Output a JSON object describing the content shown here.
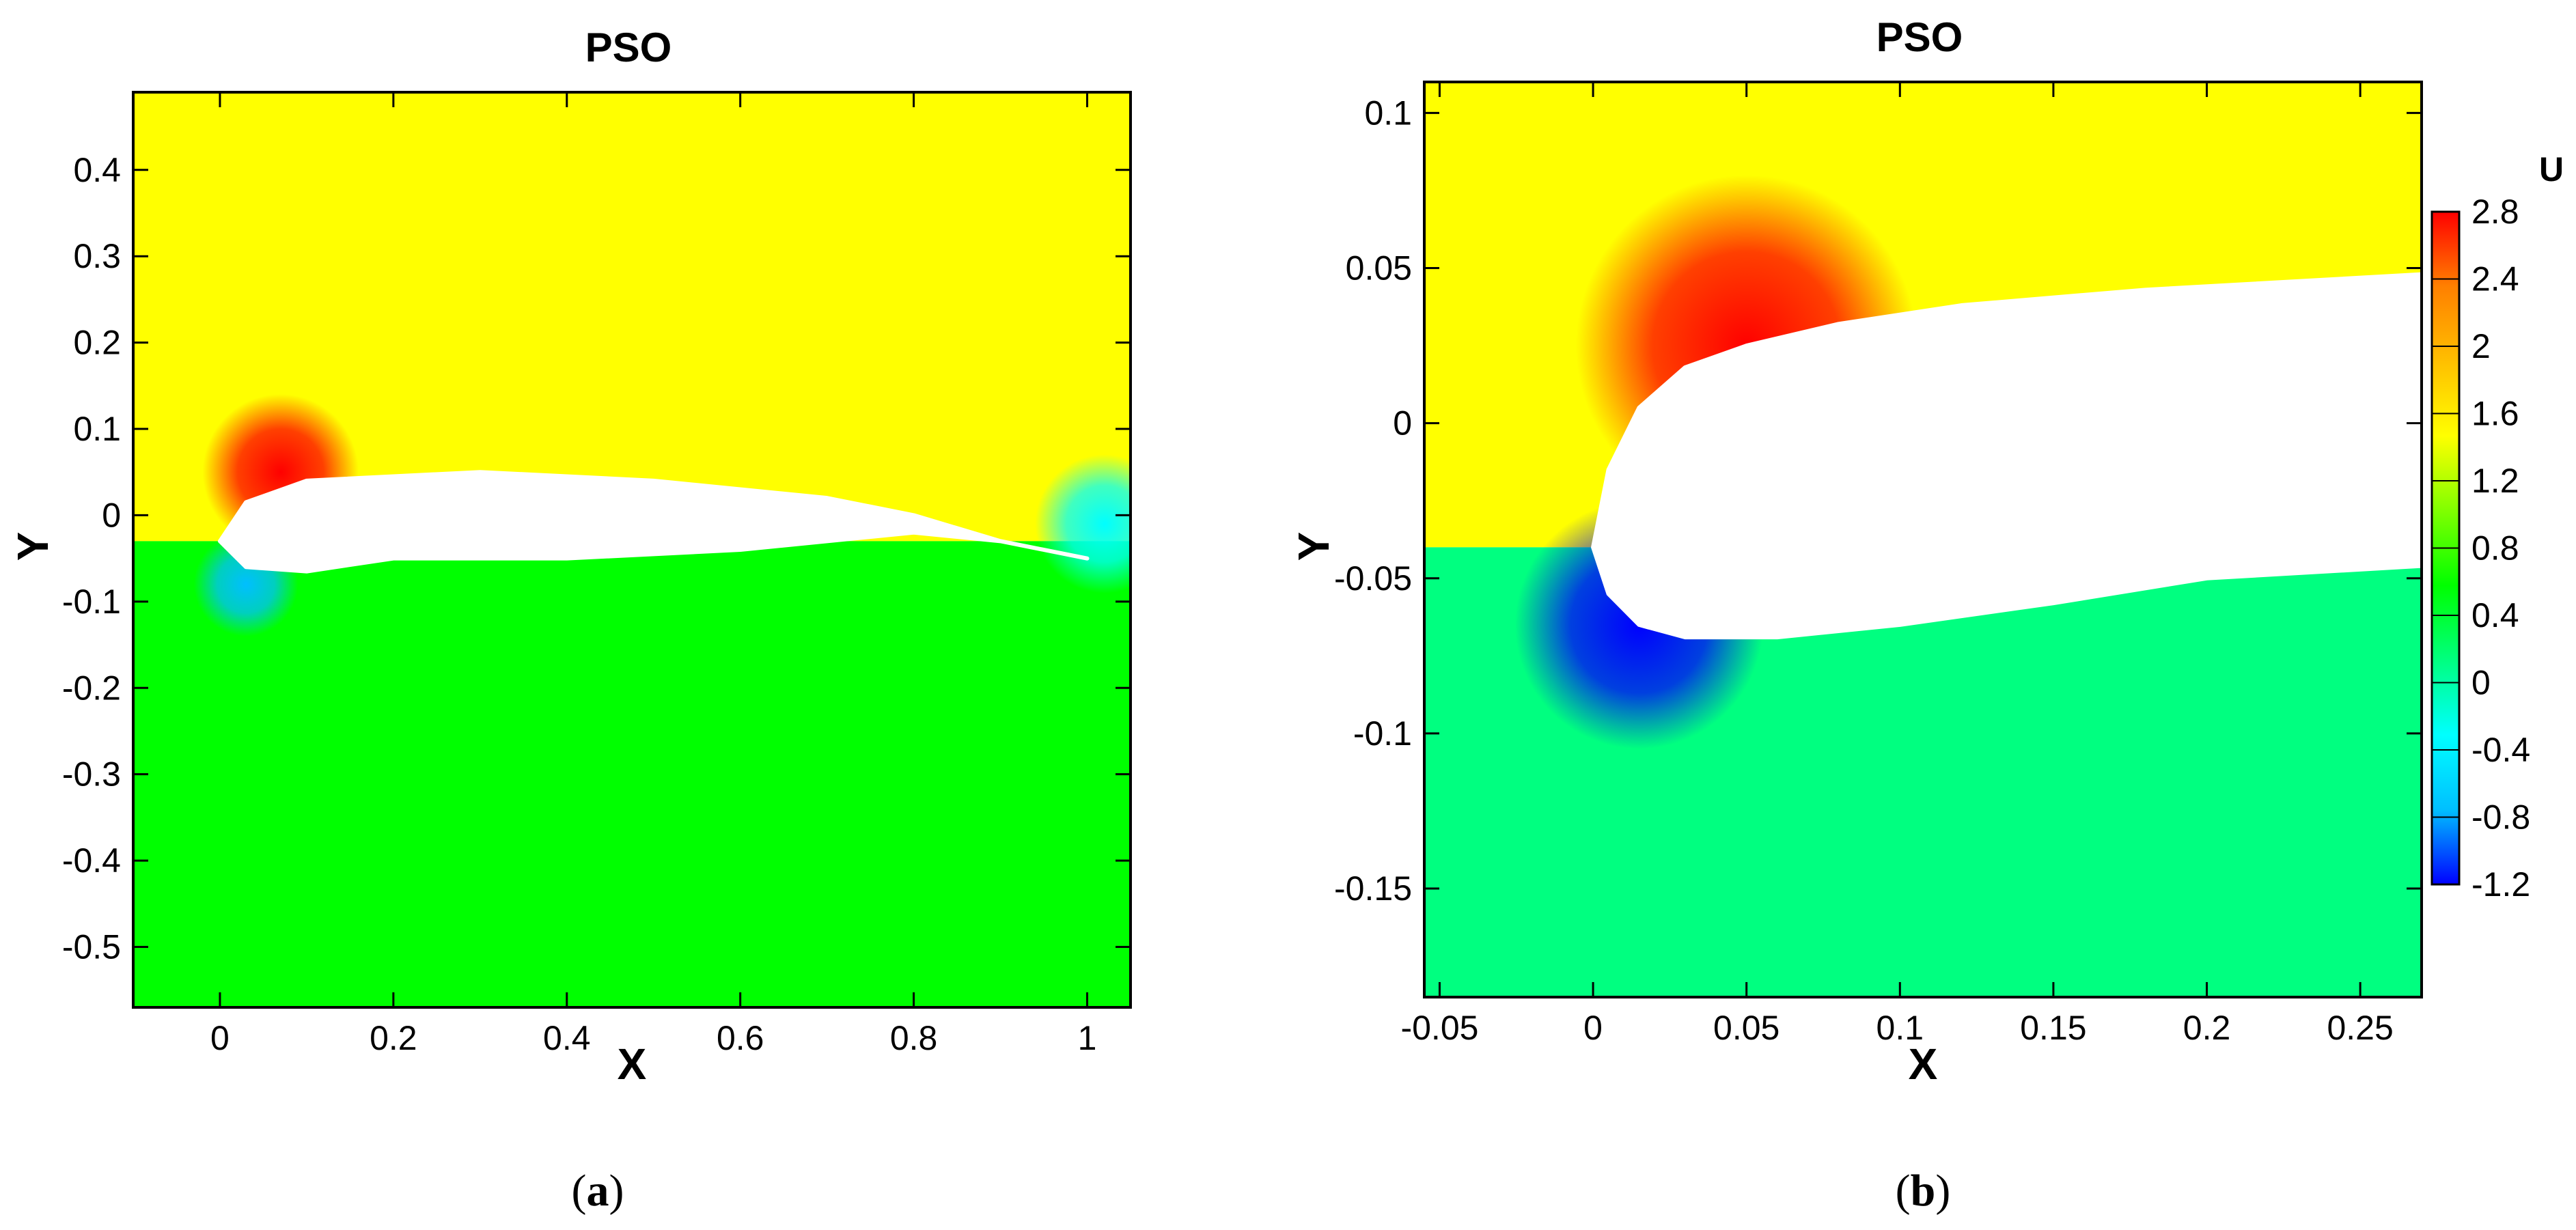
{
  "chart_data": [
    {
      "type": "heatmap",
      "panel_label": "a",
      "title": "PSO",
      "xlabel": "X",
      "ylabel": "Y",
      "xlim": [
        -0.1,
        1.05
      ],
      "ylim": [
        -0.57,
        0.49
      ],
      "xticks": [
        0,
        0.2,
        0.4,
        0.6,
        0.8,
        1
      ],
      "xtick_labels": [
        "0",
        "0.2",
        "0.4",
        "0.6",
        "0.8",
        "1"
      ],
      "yticks": [
        0.4,
        0.3,
        0.2,
        0.1,
        0,
        -0.1,
        -0.2,
        -0.3,
        -0.4,
        -0.5
      ],
      "ytick_labels": [
        "0.4",
        "0.3",
        "0.2",
        "0.1",
        "0",
        "-0.1",
        "-0.2",
        "-0.3",
        "-0.4",
        "-0.5"
      ],
      "field": {
        "variable": "U",
        "upper_region_value": 1.3,
        "lower_region_value": 0.5,
        "hotspots": [
          {
            "x": 0.07,
            "y": 0.05,
            "value": 2.9,
            "radius": 0.09
          },
          {
            "x": 0.03,
            "y": -0.08,
            "value": -0.6,
            "radius": 0.06
          },
          {
            "x": 1.02,
            "y": -0.01,
            "value": -0.2,
            "radius": 0.08
          }
        ],
        "airfoil_upper": [
          [
            0.0,
            -0.03
          ],
          [
            0.03,
            0.015
          ],
          [
            0.1,
            0.04
          ],
          [
            0.3,
            0.05
          ],
          [
            0.5,
            0.04
          ],
          [
            0.7,
            0.02
          ],
          [
            0.8,
            0.0
          ],
          [
            0.9,
            -0.03
          ],
          [
            1.0,
            -0.05
          ]
        ],
        "airfoil_lower": [
          [
            0.0,
            -0.03
          ],
          [
            0.03,
            -0.06
          ],
          [
            0.1,
            -0.065
          ],
          [
            0.2,
            -0.05
          ],
          [
            0.4,
            -0.05
          ],
          [
            0.6,
            -0.04
          ],
          [
            0.8,
            -0.02
          ],
          [
            0.9,
            -0.03
          ],
          [
            1.0,
            -0.05
          ]
        ]
      }
    },
    {
      "type": "heatmap",
      "panel_label": "b",
      "title": "PSO",
      "xlabel": "X",
      "ylabel": "Y",
      "xlim": [
        -0.055,
        0.27
      ],
      "ylim": [
        -0.185,
        0.11
      ],
      "xticks": [
        -0.05,
        0,
        0.05,
        0.1,
        0.15,
        0.2,
        0.25
      ],
      "xtick_labels": [
        "-0.05",
        "0",
        "0.05",
        "0.1",
        "0.15",
        "0.2",
        "0.25"
      ],
      "yticks": [
        0.1,
        0.05,
        0,
        -0.05,
        -0.1,
        -0.15
      ],
      "ytick_labels": [
        "0.1",
        "0.05",
        "0",
        "-0.05",
        "-0.1",
        "-0.15"
      ],
      "field": {
        "variable": "U",
        "upper_region_value": 1.4,
        "lower_region_value": 0.3,
        "hotspots": [
          {
            "x": 0.05,
            "y": 0.025,
            "value": 2.9,
            "radius": 0.055
          },
          {
            "x": 0.015,
            "y": -0.065,
            "value": -1.0,
            "radius": 0.04
          }
        ],
        "airfoil_upper": [
          [
            0.0,
            -0.04
          ],
          [
            0.005,
            -0.015
          ],
          [
            0.015,
            0.005
          ],
          [
            0.03,
            0.018
          ],
          [
            0.05,
            0.025
          ],
          [
            0.08,
            0.032
          ],
          [
            0.12,
            0.038
          ],
          [
            0.18,
            0.043
          ],
          [
            0.27,
            0.048
          ]
        ],
        "airfoil_lower": [
          [
            0.0,
            -0.04
          ],
          [
            0.005,
            -0.055
          ],
          [
            0.015,
            -0.065
          ],
          [
            0.03,
            -0.069
          ],
          [
            0.06,
            -0.069
          ],
          [
            0.1,
            -0.065
          ],
          [
            0.15,
            -0.058
          ],
          [
            0.2,
            -0.05
          ],
          [
            0.27,
            -0.046
          ]
        ]
      }
    }
  ],
  "colorbar": {
    "title": "U",
    "min": -1.2,
    "max": 2.8,
    "tick_labels": [
      "2.8",
      "2.4",
      "2",
      "1.6",
      "1.2",
      "0.8",
      "0.4",
      "0",
      "-0.4",
      "-0.8",
      "-1.2"
    ],
    "tick_values": [
      2.8,
      2.4,
      2,
      1.6,
      1.2,
      0.8,
      0.4,
      0,
      -0.4,
      -0.8,
      -1.2
    ],
    "colors_low_to_high": [
      "#0000ff",
      "#00bfff",
      "#00ffff",
      "#00ff80",
      "#00ff00",
      "#80ff00",
      "#ffff00",
      "#ffbf00",
      "#ff8000",
      "#ff0000"
    ]
  },
  "captions": {
    "a": {
      "open": "(",
      "letter": "a",
      "close": ")"
    },
    "b": {
      "open": "(",
      "letter": "b",
      "close": ")"
    }
  }
}
